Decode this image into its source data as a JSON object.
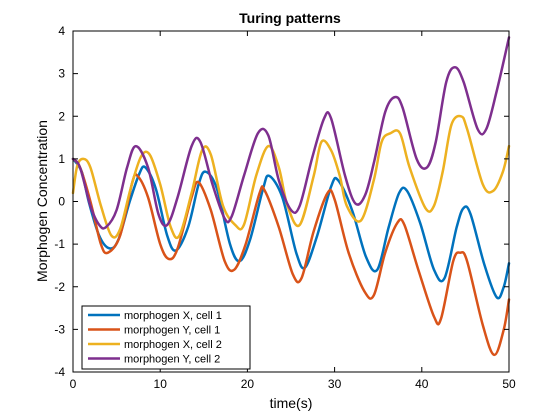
{
  "chart_data": {
    "type": "line",
    "title": "Turing patterns",
    "xlabel": "time(s)",
    "ylabel": "Morphogen Concentration",
    "xlim": [
      0,
      50
    ],
    "ylim": [
      -4,
      4
    ],
    "xticks": [
      0,
      10,
      20,
      30,
      40,
      50
    ],
    "yticks": [
      -4,
      -3,
      -2,
      -1,
      0,
      1,
      2,
      3,
      4
    ],
    "legend_position": "bottom-left",
    "grid": false,
    "series": [
      {
        "name": "morphogen X, cell 1",
        "color": "#0072BD",
        "x": [
          0,
          1.0,
          1.8,
          3.0,
          4.2,
          5.2,
          6.5,
          7.6,
          8.3,
          9.5,
          10.8,
          11.8,
          13.2,
          14.4,
          15.2,
          16.5,
          18.0,
          19.1,
          20.3,
          21.8,
          22.5,
          24.0,
          25.6,
          26.6,
          28.0,
          29.6,
          30.4,
          32.0,
          33.6,
          34.9,
          36.2,
          37.4,
          38.3,
          39.8,
          41.4,
          42.6,
          44.0,
          44.8,
          45.6,
          47.2,
          48.6,
          49.4,
          50
        ],
        "y": [
          1.0,
          0.7,
          0.0,
          -0.8,
          -1.1,
          -0.9,
          0.0,
          0.65,
          0.8,
          0.3,
          -0.8,
          -1.15,
          -0.6,
          0.4,
          0.7,
          0.3,
          -1.0,
          -1.4,
          -0.9,
          0.3,
          0.6,
          0.1,
          -1.2,
          -1.55,
          -0.8,
          0.35,
          0.5,
          -0.2,
          -1.3,
          -1.6,
          -0.6,
          0.2,
          0.25,
          -0.5,
          -1.6,
          -1.8,
          -0.6,
          -0.15,
          -0.3,
          -1.5,
          -2.25,
          -2.0,
          -1.45
        ]
      },
      {
        "name": "morphogen Y, cell 1",
        "color": "#D95319",
        "x": [
          0,
          0.8,
          2.0,
          3.2,
          4.0,
          5.4,
          6.8,
          7.4,
          8.6,
          10.0,
          11.0,
          12.0,
          13.6,
          14.4,
          15.8,
          17.4,
          18.5,
          19.8,
          21.4,
          22.0,
          23.6,
          25.2,
          26.2,
          27.6,
          29.2,
          30.0,
          31.6,
          33.4,
          34.5,
          35.8,
          37.2,
          38.0,
          39.6,
          41.4,
          42.2,
          43.6,
          44.4,
          45.2,
          47.0,
          48.3,
          49.4,
          50
        ],
        "y": [
          1.0,
          0.8,
          0.0,
          -1.0,
          -1.2,
          -0.8,
          0.45,
          0.6,
          0.1,
          -1.0,
          -1.35,
          -1.1,
          0.1,
          0.45,
          -0.2,
          -1.4,
          -1.6,
          -1.0,
          0.2,
          0.25,
          -0.6,
          -1.7,
          -1.8,
          -0.7,
          0.2,
          0.05,
          -1.2,
          -2.1,
          -2.2,
          -1.2,
          -0.5,
          -0.55,
          -1.6,
          -2.7,
          -2.75,
          -1.4,
          -1.2,
          -1.4,
          -2.9,
          -3.6,
          -3.0,
          -2.3
        ]
      },
      {
        "name": "morphogen X, cell 2",
        "color": "#EDB120",
        "x": [
          0,
          0.5,
          1.2,
          2.0,
          3.2,
          4.4,
          5.4,
          6.6,
          7.8,
          8.8,
          10.0,
          11.2,
          12.2,
          13.6,
          14.8,
          15.8,
          17.2,
          18.6,
          19.6,
          21.0,
          22.4,
          23.6,
          24.6,
          26.0,
          27.6,
          28.5,
          29.6,
          30.6,
          31.4,
          33.0,
          34.5,
          35.4,
          36.4,
          37.5,
          38.6,
          40.4,
          41.4,
          42.4,
          43.4,
          44.5,
          45.2,
          47.0,
          48.2,
          49.3,
          50
        ],
        "y": [
          0.2,
          0.85,
          1.0,
          0.8,
          -0.1,
          -0.8,
          -0.65,
          0.3,
          1.05,
          1.1,
          0.4,
          -0.6,
          -0.8,
          0.2,
          1.2,
          1.1,
          -0.1,
          -0.55,
          -0.55,
          0.6,
          1.3,
          0.8,
          -0.1,
          -0.55,
          0.6,
          1.4,
          1.2,
          0.6,
          -0.1,
          -0.45,
          0.5,
          1.4,
          1.6,
          1.6,
          0.8,
          -0.15,
          -0.1,
          0.7,
          1.8,
          2.0,
          1.7,
          0.4,
          0.25,
          0.7,
          1.3
        ]
      },
      {
        "name": "morphogen Y, cell 2",
        "color": "#7E2F8E",
        "x": [
          0,
          0.8,
          2.0,
          3.0,
          3.8,
          5.0,
          6.2,
          7.2,
          8.6,
          9.8,
          10.8,
          12.0,
          13.6,
          14.6,
          16.0,
          17.4,
          18.2,
          19.6,
          21.2,
          22.4,
          23.6,
          25.0,
          26.0,
          27.4,
          28.8,
          29.6,
          31.2,
          32.4,
          33.5,
          34.5,
          35.8,
          36.9,
          37.8,
          39.4,
          40.6,
          41.6,
          42.8,
          43.8,
          44.8,
          46.4,
          47.4,
          48.6,
          50
        ],
        "y": [
          1.0,
          0.8,
          -0.1,
          -0.55,
          -0.6,
          -0.2,
          0.8,
          1.3,
          0.8,
          -0.3,
          -0.55,
          0.1,
          1.3,
          1.4,
          0.4,
          -0.4,
          -0.35,
          0.6,
          1.6,
          1.55,
          0.5,
          -0.2,
          -0.1,
          1.0,
          1.95,
          1.95,
          0.6,
          -0.05,
          0.15,
          0.9,
          2.1,
          2.45,
          2.2,
          1.0,
          0.8,
          1.4,
          2.8,
          3.15,
          2.8,
          1.7,
          1.7,
          2.6,
          3.85
        ]
      }
    ]
  }
}
